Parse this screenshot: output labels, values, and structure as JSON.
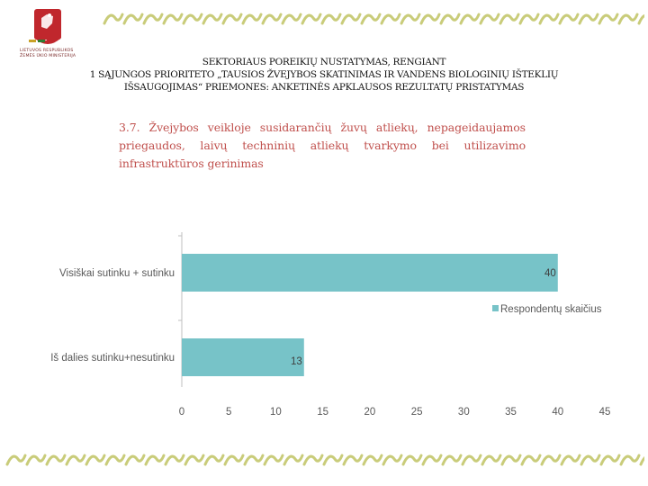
{
  "logo": {
    "lines": [
      "LIETUVOS RESPUBLIKOS",
      "ŽEMĖS ŪKIO MINISTERIJA"
    ]
  },
  "header": {
    "line1": "SEKTORIAUS POREIKIŲ NUSTATYMAS, RENGIANT",
    "line2": "1 SĄJUNGOS PRIORITETO „TAUSIOS ŽVEJYBOS SKATINIMAS IR VANDENS BIOLOGINIŲ IŠTEKLIŲ",
    "line3": "IŠSAUGOJIMAS“ PRIEMONES: ANKETINĖS APKLAUSOS REZULTATŲ PRISTATYMAS"
  },
  "subtitle": "3.7. Žvejybos veikloje susidarančių žuvų atliekų, nepageidaujamos priegaudos, laivų techninių atliekų tvarkymo bei utilizavimo infrastruktūros gerinimas",
  "colors": {
    "bar": "#77c3c8",
    "subtitle": "#c0504d",
    "deco": "#c9cc7a"
  },
  "chart_data": {
    "type": "bar",
    "orientation": "horizontal",
    "categories": [
      "Visiškai sutinku + sutinku",
      "Iš dalies sutinku+nesutinku"
    ],
    "series": [
      {
        "name": "Respondentų skaičius",
        "values": [
          40,
          13
        ]
      }
    ],
    "xlim": [
      0,
      45
    ],
    "xticks": [
      "0",
      "5",
      "10",
      "15",
      "20",
      "25",
      "30",
      "35",
      "40",
      "45"
    ],
    "legend_position": "right",
    "grid": false,
    "data_labels": true
  }
}
